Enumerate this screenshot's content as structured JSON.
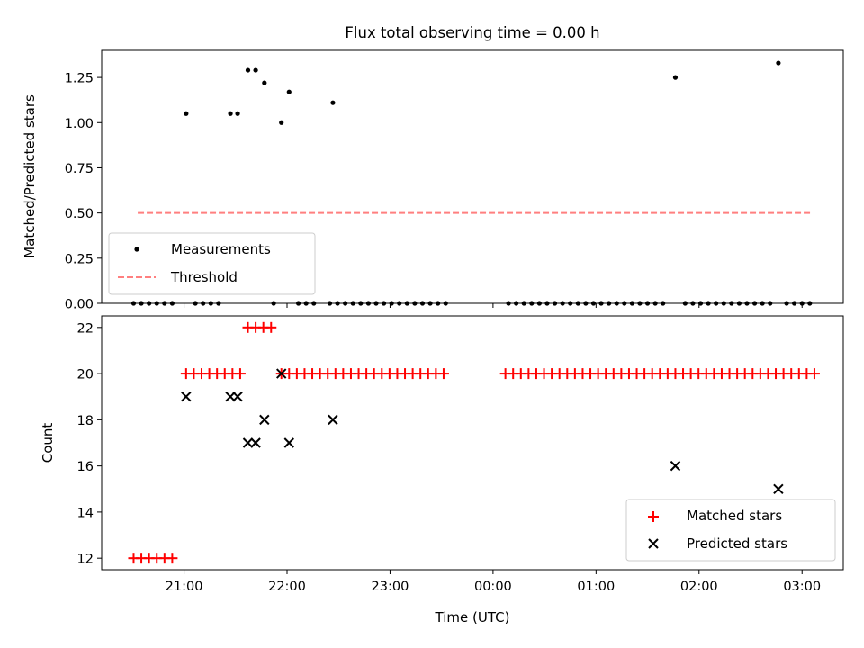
{
  "figure": {
    "title": "Flux total observing time = 0.00 h",
    "xlabel": "Time (UTC)",
    "xticks": [
      "21:00",
      "22:00",
      "23:00",
      "00:00",
      "01:00",
      "02:00",
      "03:00"
    ]
  },
  "colors": {
    "measurement": "#000000",
    "threshold": "#ff7f7f",
    "matched": "#ff0000",
    "predicted": "#000000"
  },
  "chart_data": [
    {
      "type": "scatter",
      "panel": "top",
      "ylabel": "Matched/Predicted stars",
      "ylim": [
        0,
        1.4
      ],
      "yticks": [
        "0.00",
        "0.25",
        "0.50",
        "0.75",
        "1.00",
        "1.25"
      ],
      "xlim": [
        "20:12",
        "03:24"
      ],
      "x_unit": "hours (UTC), >24 = after midnight",
      "legend": {
        "position": "lower-left",
        "entries": [
          "Measurements",
          "Threshold"
        ]
      },
      "series": [
        {
          "name": "Measurements",
          "marker": "dot",
          "points": [
            [
              20.51,
              0
            ],
            [
              20.585,
              0
            ],
            [
              20.66,
              0
            ],
            [
              20.735,
              0
            ],
            [
              20.81,
              0
            ],
            [
              20.885,
              0
            ],
            [
              21.02,
              1.05
            ],
            [
              21.11,
              0
            ],
            [
              21.185,
              0
            ],
            [
              21.26,
              0
            ],
            [
              21.335,
              0
            ],
            [
              21.45,
              1.05
            ],
            [
              21.52,
              1.05
            ],
            [
              21.62,
              1.29
            ],
            [
              21.695,
              1.29
            ],
            [
              21.78,
              1.22
            ],
            [
              21.87,
              0
            ],
            [
              21.945,
              1.0
            ],
            [
              22.02,
              1.17
            ],
            [
              22.11,
              0
            ],
            [
              22.185,
              0
            ],
            [
              22.26,
              0
            ],
            [
              22.445,
              1.11
            ],
            [
              22.415,
              0
            ],
            [
              22.49,
              0
            ],
            [
              22.565,
              0
            ],
            [
              22.64,
              0
            ],
            [
              22.715,
              0
            ],
            [
              22.79,
              0
            ],
            [
              22.865,
              0
            ],
            [
              22.94,
              0
            ],
            [
              23.015,
              0
            ],
            [
              23.09,
              0
            ],
            [
              23.165,
              0
            ],
            [
              23.24,
              0
            ],
            [
              23.315,
              0
            ],
            [
              23.39,
              0
            ],
            [
              23.465,
              0
            ],
            [
              23.54,
              0
            ],
            [
              24.15,
              0
            ],
            [
              24.225,
              0
            ],
            [
              24.3,
              0
            ],
            [
              24.375,
              0
            ],
            [
              24.45,
              0
            ],
            [
              24.525,
              0
            ],
            [
              24.6,
              0
            ],
            [
              24.675,
              0
            ],
            [
              24.75,
              0
            ],
            [
              24.825,
              0
            ],
            [
              24.9,
              0
            ],
            [
              24.975,
              0
            ],
            [
              25.05,
              0
            ],
            [
              25.125,
              0
            ],
            [
              25.2,
              0
            ],
            [
              25.275,
              0
            ],
            [
              25.35,
              0
            ],
            [
              25.425,
              0
            ],
            [
              25.5,
              0
            ],
            [
              25.575,
              0
            ],
            [
              25.65,
              0
            ],
            [
              25.77,
              1.25
            ],
            [
              25.865,
              0
            ],
            [
              25.94,
              0
            ],
            [
              26.015,
              0
            ],
            [
              26.09,
              0
            ],
            [
              26.165,
              0
            ],
            [
              26.24,
              0
            ],
            [
              26.315,
              0
            ],
            [
              26.39,
              0
            ],
            [
              26.465,
              0
            ],
            [
              26.54,
              0
            ],
            [
              26.615,
              0
            ],
            [
              26.69,
              0
            ],
            [
              26.77,
              1.33
            ],
            [
              26.85,
              0
            ],
            [
              26.925,
              0
            ],
            [
              27.0,
              0
            ],
            [
              27.075,
              0
            ]
          ]
        },
        {
          "name": "Threshold",
          "style": "dashed",
          "x": [
            20.55,
            27.1
          ],
          "y": [
            0.5,
            0.5
          ]
        }
      ]
    },
    {
      "type": "scatter",
      "panel": "bottom",
      "ylabel": "Count",
      "ylim": [
        11.5,
        22.5
      ],
      "yticks": [
        "12",
        "14",
        "16",
        "18",
        "20",
        "22"
      ],
      "xlim": [
        "20:12",
        "03:24"
      ],
      "x_unit": "hours (UTC), >24 = after midnight",
      "legend": {
        "position": "lower-right",
        "entries": [
          "Matched stars",
          "Predicted stars"
        ]
      },
      "series": [
        {
          "name": "Matched stars",
          "marker": "plus",
          "points": [
            [
              20.51,
              12
            ],
            [
              20.585,
              12
            ],
            [
              20.66,
              12
            ],
            [
              20.735,
              12
            ],
            [
              20.81,
              12
            ],
            [
              20.885,
              12
            ],
            [
              21.02,
              20
            ],
            [
              21.095,
              20
            ],
            [
              21.17,
              20
            ],
            [
              21.245,
              20
            ],
            [
              21.32,
              20
            ],
            [
              21.395,
              20
            ],
            [
              21.47,
              20
            ],
            [
              21.545,
              20
            ],
            [
              21.62,
              22
            ],
            [
              21.695,
              22
            ],
            [
              21.77,
              22
            ],
            [
              21.845,
              22
            ],
            [
              21.945,
              20
            ],
            [
              22.02,
              20
            ],
            [
              22.095,
              20
            ],
            [
              22.17,
              20
            ],
            [
              22.245,
              20
            ],
            [
              22.32,
              20
            ],
            [
              22.395,
              20
            ],
            [
              22.47,
              20
            ],
            [
              22.545,
              20
            ],
            [
              22.62,
              20
            ],
            [
              22.695,
              20
            ],
            [
              22.77,
              20
            ],
            [
              22.845,
              20
            ],
            [
              22.92,
              20
            ],
            [
              22.995,
              20
            ],
            [
              23.07,
              20
            ],
            [
              23.145,
              20
            ],
            [
              23.22,
              20
            ],
            [
              23.295,
              20
            ],
            [
              23.37,
              20
            ],
            [
              23.445,
              20
            ],
            [
              23.52,
              20
            ],
            [
              24.12,
              20
            ],
            [
              24.195,
              20
            ],
            [
              24.27,
              20
            ],
            [
              24.345,
              20
            ],
            [
              24.42,
              20
            ],
            [
              24.495,
              20
            ],
            [
              24.57,
              20
            ],
            [
              24.645,
              20
            ],
            [
              24.72,
              20
            ],
            [
              24.795,
              20
            ],
            [
              24.87,
              20
            ],
            [
              24.945,
              20
            ],
            [
              25.02,
              20
            ],
            [
              25.095,
              20
            ],
            [
              25.17,
              20
            ],
            [
              25.245,
              20
            ],
            [
              25.32,
              20
            ],
            [
              25.395,
              20
            ],
            [
              25.47,
              20
            ],
            [
              25.545,
              20
            ],
            [
              25.62,
              20
            ],
            [
              25.695,
              20
            ],
            [
              25.77,
              20
            ],
            [
              25.845,
              20
            ],
            [
              25.92,
              20
            ],
            [
              25.995,
              20
            ],
            [
              26.07,
              20
            ],
            [
              26.145,
              20
            ],
            [
              26.22,
              20
            ],
            [
              26.295,
              20
            ],
            [
              26.37,
              20
            ],
            [
              26.445,
              20
            ],
            [
              26.52,
              20
            ],
            [
              26.595,
              20
            ],
            [
              26.67,
              20
            ],
            [
              26.745,
              20
            ],
            [
              26.82,
              20
            ],
            [
              26.895,
              20
            ],
            [
              26.97,
              20
            ],
            [
              27.045,
              20
            ],
            [
              27.12,
              20
            ]
          ]
        },
        {
          "name": "Predicted stars",
          "marker": "x",
          "points": [
            [
              21.02,
              19
            ],
            [
              21.45,
              19
            ],
            [
              21.52,
              19
            ],
            [
              21.62,
              17
            ],
            [
              21.695,
              17
            ],
            [
              21.78,
              18
            ],
            [
              21.945,
              20
            ],
            [
              22.02,
              17
            ],
            [
              22.445,
              18
            ],
            [
              25.77,
              16
            ],
            [
              26.77,
              15
            ]
          ]
        }
      ]
    }
  ]
}
